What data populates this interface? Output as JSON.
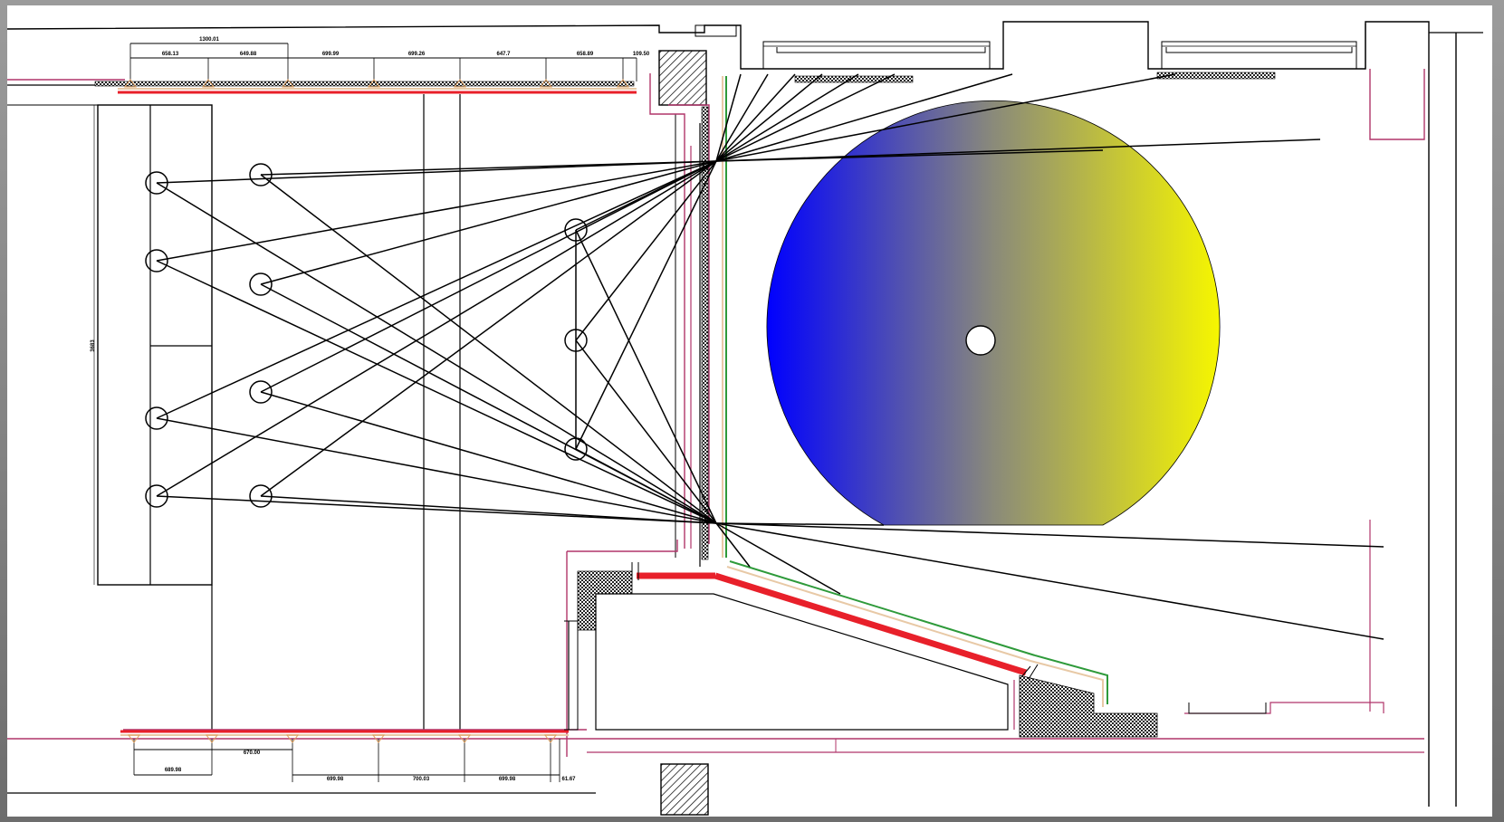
{
  "drawing": {
    "top_dimensions": {
      "overall": "1300.01",
      "segments": [
        "658.13",
        "649.88",
        "699.99",
        "699.26",
        "647.7",
        "658.89",
        "109.50"
      ]
    },
    "bottom_dimensions": {
      "segments": [
        "689.98",
        "670.00",
        "699.98",
        "700.03",
        "699.98",
        "61.67"
      ]
    },
    "vertical_dimension": "3683"
  },
  "colors": {
    "wall_line": "#b0356a",
    "accent_red": "#e8202a",
    "accent_green": "#2e9a3a",
    "accent_tan": "#e8c9a6",
    "gradient_start": "#0000ff",
    "gradient_end": "#f6f600"
  }
}
